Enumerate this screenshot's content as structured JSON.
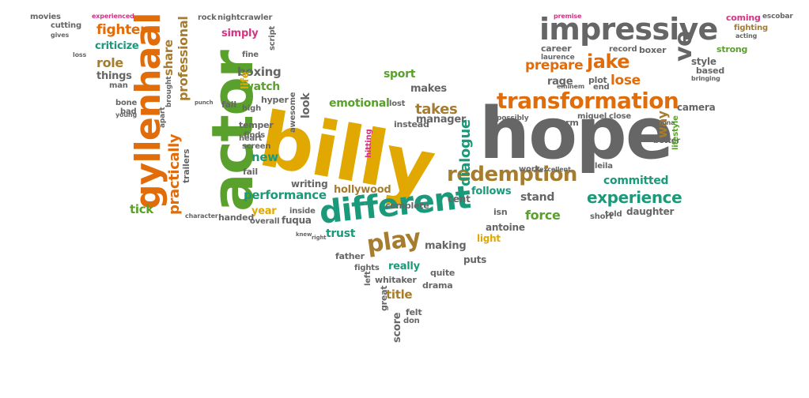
{
  "words": [
    {
      "text": "billy",
      "color": "#e0a800"
    },
    {
      "text": "hope",
      "color": "#666666"
    },
    {
      "text": "actor",
      "color": "#5aa02c"
    },
    {
      "text": "gyllenhaal",
      "color": "#e06c0a"
    },
    {
      "text": "different",
      "color": "#1a9a7a"
    },
    {
      "text": "impressive",
      "color": "#666666"
    },
    {
      "text": "transformation",
      "color": "#e06c0a"
    },
    {
      "text": "redemption",
      "color": "#a67c2e"
    },
    {
      "text": "experience",
      "color": "#1a9a7a"
    },
    {
      "text": "play",
      "color": "#a67c2e"
    },
    {
      "text": "jake",
      "color": "#e06c0a"
    },
    {
      "text": "ve",
      "color": "#666666"
    },
    {
      "text": "practically",
      "color": "#e06c0a"
    },
    {
      "text": "professional",
      "color": "#a67c2e"
    },
    {
      "text": "performance",
      "color": "#1a9a7a"
    },
    {
      "text": "fighter",
      "color": "#e06c0a"
    },
    {
      "text": "criticize",
      "color": "#1a9a7a"
    },
    {
      "text": "share",
      "color": "#a67c2e"
    },
    {
      "text": "role",
      "color": "#a67c2e"
    },
    {
      "text": "things",
      "color": "#666666"
    },
    {
      "text": "boxing",
      "color": "#666666"
    },
    {
      "text": "watch",
      "color": "#5aa02c"
    },
    {
      "text": "simply",
      "color": "#d63384"
    },
    {
      "text": "emotional",
      "color": "#5aa02c"
    },
    {
      "text": "takes",
      "color": "#a67c2e"
    },
    {
      "text": "manager",
      "color": "#666666"
    },
    {
      "text": "dialogue",
      "color": "#1a9a7a"
    },
    {
      "text": "committed",
      "color": "#1a9a7a"
    },
    {
      "text": "lose",
      "color": "#e06c0a"
    },
    {
      "text": "prepare",
      "color": "#e06c0a"
    },
    {
      "text": "sport",
      "color": "#5aa02c"
    },
    {
      "text": "makes",
      "color": "#666666"
    },
    {
      "text": "look",
      "color": "#666666"
    },
    {
      "text": "hollywood",
      "color": "#a67c2e"
    },
    {
      "text": "new",
      "color": "#1a9a7a"
    },
    {
      "text": "stand",
      "color": "#666666"
    },
    {
      "text": "follows",
      "color": "#1a9a7a"
    },
    {
      "text": "force",
      "color": "#5aa02c"
    },
    {
      "text": "trust",
      "color": "#1a9a7a"
    },
    {
      "text": "making",
      "color": "#666666"
    },
    {
      "text": "really",
      "color": "#1a9a7a"
    },
    {
      "text": "title",
      "color": "#a67c2e"
    },
    {
      "text": "fuqua",
      "color": "#666666"
    },
    {
      "text": "year",
      "color": "#e0a800"
    },
    {
      "text": "tick",
      "color": "#5aa02c"
    },
    {
      "text": "way",
      "color": "#a67c2e"
    },
    {
      "text": "style",
      "color": "#666666"
    },
    {
      "text": "daughter",
      "color": "#666666"
    },
    {
      "text": "camera",
      "color": "#666666"
    },
    {
      "text": "rage",
      "color": "#666666"
    },
    {
      "text": "plot",
      "color": "#666666"
    },
    {
      "text": "career",
      "color": "#666666"
    },
    {
      "text": "boxer",
      "color": "#666666"
    },
    {
      "text": "coming",
      "color": "#d63384"
    },
    {
      "text": "fighting",
      "color": "#a67c2e"
    },
    {
      "text": "strong",
      "color": "#5aa02c"
    },
    {
      "text": "record",
      "color": "#666666"
    },
    {
      "text": "laurence",
      "color": "#666666"
    },
    {
      "text": "eminem",
      "color": "#666666"
    },
    {
      "text": "end",
      "color": "#666666"
    },
    {
      "text": "miguel",
      "color": "#666666"
    },
    {
      "text": "close",
      "color": "#666666"
    },
    {
      "text": "charm",
      "color": "#666666"
    },
    {
      "text": "possibly",
      "color": "#666666"
    },
    {
      "text": "leila",
      "color": "#666666"
    },
    {
      "text": "better",
      "color": "#666666"
    },
    {
      "text": "oona",
      "color": "#666666"
    },
    {
      "text": "lifestyle",
      "color": "#5aa02c"
    },
    {
      "text": "based",
      "color": "#666666"
    },
    {
      "text": "bringing",
      "color": "#666666"
    },
    {
      "text": "told",
      "color": "#666666"
    },
    {
      "text": "short",
      "color": "#666666"
    },
    {
      "text": "antoine",
      "color": "#666666"
    },
    {
      "text": "isn",
      "color": "#666666"
    },
    {
      "text": "cent",
      "color": "#666666"
    },
    {
      "text": "puts",
      "color": "#666666"
    },
    {
      "text": "light",
      "color": "#e0a800"
    },
    {
      "text": "quite",
      "color": "#666666"
    },
    {
      "text": "drama",
      "color": "#666666"
    },
    {
      "text": "whitaker",
      "color": "#666666"
    },
    {
      "text": "father",
      "color": "#666666"
    },
    {
      "text": "fights",
      "color": "#666666"
    },
    {
      "text": "left",
      "color": "#666666"
    },
    {
      "text": "great",
      "color": "#666666"
    },
    {
      "text": "score",
      "color": "#666666"
    },
    {
      "text": "felt",
      "color": "#666666"
    },
    {
      "text": "don",
      "color": "#666666"
    },
    {
      "text": "complete",
      "color": "#666666"
    },
    {
      "text": "writing",
      "color": "#666666"
    },
    {
      "text": "inside",
      "color": "#666666"
    },
    {
      "text": "overall",
      "color": "#666666"
    },
    {
      "text": "handed",
      "color": "#666666"
    },
    {
      "text": "fail",
      "color": "#666666"
    },
    {
      "text": "finds",
      "color": "#666666"
    },
    {
      "text": "screen",
      "color": "#666666"
    },
    {
      "text": "heart",
      "color": "#666666"
    },
    {
      "text": "temper",
      "color": "#666666"
    },
    {
      "text": "high",
      "color": "#666666"
    },
    {
      "text": "hyper",
      "color": "#666666"
    },
    {
      "text": "fall",
      "color": "#666666"
    },
    {
      "text": "life",
      "color": "#e0a800"
    },
    {
      "text": "awesome",
      "color": "#666666"
    },
    {
      "text": "instead",
      "color": "#666666"
    },
    {
      "text": "hitting",
      "color": "#d63384"
    },
    {
      "text": "lost",
      "color": "#666666"
    },
    {
      "text": "trailers",
      "color": "#666666"
    },
    {
      "text": "bone",
      "color": "#666666"
    },
    {
      "text": "bad",
      "color": "#666666"
    },
    {
      "text": "man",
      "color": "#666666"
    },
    {
      "text": "movies",
      "color": "#666666"
    },
    {
      "text": "cutting",
      "color": "#666666"
    },
    {
      "text": "gives",
      "color": "#666666"
    },
    {
      "text": "loss",
      "color": "#666666"
    },
    {
      "text": "experienced",
      "color": "#d63384"
    },
    {
      "text": "rock",
      "color": "#666666"
    },
    {
      "text": "nightcrawler",
      "color": "#666666"
    },
    {
      "text": "fine",
      "color": "#666666"
    },
    {
      "text": "script",
      "color": "#666666"
    },
    {
      "text": "premise",
      "color": "#d63384"
    },
    {
      "text": "escobar",
      "color": "#666666"
    },
    {
      "text": "acting",
      "color": "#666666"
    },
    {
      "text": "work",
      "color": "#666666"
    },
    {
      "text": "excellent",
      "color": "#666666"
    },
    {
      "text": "apart",
      "color": "#666666"
    },
    {
      "text": "brought",
      "color": "#666666"
    },
    {
      "text": "young",
      "color": "#666666"
    },
    {
      "text": "punch",
      "color": "#666666"
    },
    {
      "text": "character",
      "color": "#666666"
    },
    {
      "text": "knew",
      "color": "#666666"
    },
    {
      "text": "right",
      "color": "#666666"
    }
  ]
}
